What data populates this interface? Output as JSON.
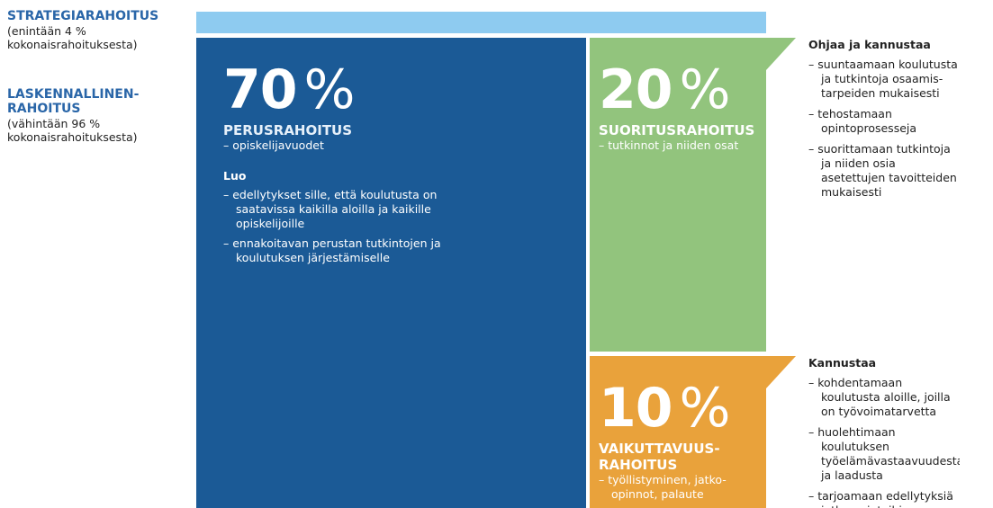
{
  "left": {
    "strategic": {
      "title": "STRATEGIARAHOITUS",
      "note": "(enintään 4 % kokonaisrahoituksesta)"
    },
    "calculated": {
      "title": "LASKENNALLINEN-RAHOITUS",
      "note": "(vähintään 96 % kokonaisrahoituksesta)"
    }
  },
  "blocks": [
    {
      "number": "70",
      "unit": "%",
      "title": "PERUSRAHOITUS",
      "items": [
        "– opiskelijavuodet"
      ],
      "subtitle": "Luo",
      "subitems": [
        "– edellytykset sille, että koulutusta on saatavissa kaikilla aloilla ja kaikille opiskelijoille",
        "– ennakoitavan perustan tutkintojen ja koulutuksen järjestämiselle"
      ]
    },
    {
      "number": "20",
      "unit": "%",
      "title": "SUORITUSRAHOITUS",
      "items": [
        "– tutkinnot ja niiden osat"
      ]
    },
    {
      "number": "10",
      "unit": "%",
      "title": "VAIKUTTAVUUS-RAHOITUS",
      "items": [
        "– työllistyminen, jatko-opinnot, palaute"
      ]
    }
  ],
  "callouts": [
    {
      "title": "Ohjaa ja kannustaa",
      "items": [
        "– suuntaamaan koulutusta ja tutkintoja osaamis-tarpeiden mukaisesti",
        "– tehostamaan opintoprosesseja",
        "– suorittamaan tutkintoja ja niiden osia asetettujen tavoitteiden mukaisesti"
      ]
    },
    {
      "title": "Kannustaa",
      "items": [
        "– kohdentamaan koulutusta aloille, joilla on työvoimatarvetta",
        "– huolehtimaan koulutuksen työelämävastaavuudesta ja laadusta",
        "– tarjoamaan edellytyksiä jatko-opintoihin"
      ]
    }
  ]
}
